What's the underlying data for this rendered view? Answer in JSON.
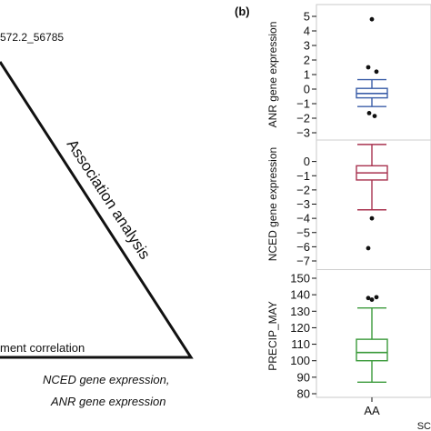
{
  "left_panel": {
    "top_left_label": "572.2_56785",
    "diagonal_label": "Association analysis",
    "bottom_left_label": "ment correlation",
    "bottom_right_line1": "NCED gene expression,",
    "bottom_right_line2": "ANR gene expression"
  },
  "right_panel": {
    "panel_label": "(b)",
    "x_category": "AA",
    "x_axis_fragment": "SC"
  },
  "chart_data": [
    {
      "type": "box",
      "ylabel": "ANR gene expression",
      "ylim": [
        -3,
        5
      ],
      "yticks": [
        5,
        4,
        3,
        2,
        1,
        0,
        -1,
        -2,
        -3
      ],
      "color": "#3b5ea8",
      "categories": [
        "AA"
      ],
      "box": {
        "whisker_low": -1.2,
        "q1": -0.6,
        "median": -0.3,
        "q3": 0.05,
        "whisker_high": 0.65
      },
      "outliers": [
        4.8,
        1.5,
        1.2,
        -1.65,
        -1.85
      ]
    },
    {
      "type": "box",
      "ylabel": "NCED gene expression",
      "ylim": [
        -7,
        1
      ],
      "yticks": [
        0,
        -1,
        -2,
        -3,
        -4,
        -5,
        -6,
        -7
      ],
      "color": "#a8324f",
      "categories": [
        "AA"
      ],
      "box": {
        "whisker_low": -3.4,
        "q1": -1.3,
        "median": -0.8,
        "q3": -0.3,
        "whisker_high": 1.2
      },
      "outliers": [
        -4.0,
        -6.1
      ]
    },
    {
      "type": "box",
      "ylabel": "PRECIP_MAY",
      "ylim": [
        80,
        150
      ],
      "yticks": [
        150,
        140,
        130,
        120,
        110,
        100,
        90,
        80
      ],
      "color": "#3a9a3a",
      "categories": [
        "AA"
      ],
      "box": {
        "whisker_low": 87,
        "q1": 100,
        "median": 105,
        "q3": 113,
        "whisker_high": 132
      },
      "outliers": [
        137,
        138,
        138.5
      ]
    }
  ]
}
